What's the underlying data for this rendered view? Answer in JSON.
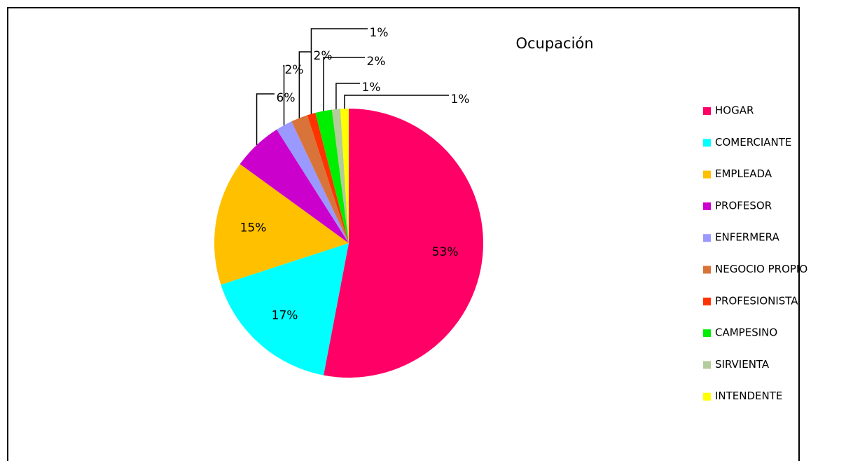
{
  "chart_data": {
    "type": "pie",
    "title": "Ocupación",
    "categories": [
      "HOGAR",
      "COMERCIANTE",
      "EMPLEADA",
      "PROFESOR",
      "ENFERMERA",
      "NEGOCIO PROPIO",
      "PROFESIONISTA",
      "CAMPESINO",
      "SIRVIENTA",
      "INTENDENTE"
    ],
    "values": [
      53,
      17,
      15,
      6,
      2,
      2,
      1,
      2,
      1,
      1
    ],
    "colors": [
      "#ff0066",
      "#00ffff",
      "#ffc000",
      "#cc00cc",
      "#9999ff",
      "#d8743a",
      "#ff3300",
      "#00ee00",
      "#b3cc99",
      "#ffff00"
    ],
    "legend": "right"
  }
}
